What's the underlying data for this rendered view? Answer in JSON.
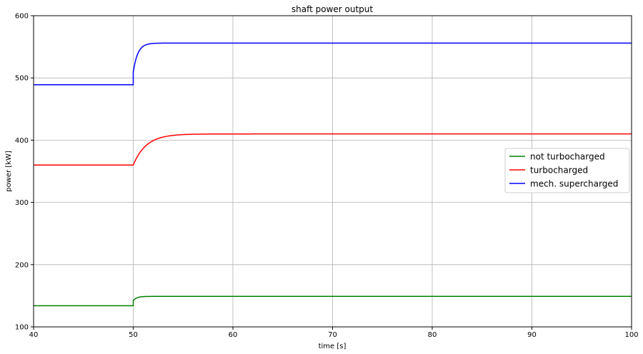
{
  "chart_data": {
    "type": "line",
    "title": "shaft power output",
    "xlabel": "time [s]",
    "ylabel": "power [kW]",
    "xlim": [
      40,
      100
    ],
    "ylim": [
      100,
      600
    ],
    "xticks": [
      40,
      50,
      60,
      70,
      80,
      90,
      100
    ],
    "yticks": [
      100,
      200,
      300,
      400,
      500,
      600
    ],
    "grid": true,
    "legend_position": "center-right",
    "step_time": 50,
    "series": [
      {
        "name": "not turbocharged",
        "color": "#008000",
        "before": 134,
        "after": 149,
        "tau": 0.35,
        "jump": 0.55
      },
      {
        "name": "turbocharged",
        "color": "#ff0000",
        "before": 360,
        "after": 410,
        "tau": 1.3,
        "jump": 0
      },
      {
        "name": "mech. supercharged",
        "color": "#0000ff",
        "before": 489,
        "after": 556,
        "tau": 0.45,
        "jump": 0.3
      }
    ]
  }
}
